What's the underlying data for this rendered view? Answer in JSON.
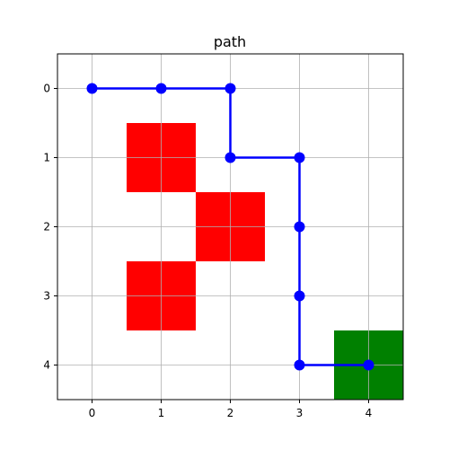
{
  "chart_data": {
    "type": "scatter",
    "title": "path",
    "xlabel": "",
    "ylabel": "",
    "xlim": [
      -0.5,
      4.5
    ],
    "ylim": [
      4.5,
      -0.5
    ],
    "y_axis_inverted": true,
    "grid": true,
    "x_ticks": [
      "0",
      "1",
      "2",
      "3",
      "4"
    ],
    "y_ticks": [
      "0",
      "1",
      "2",
      "3",
      "4"
    ],
    "obstacle_cells": [
      {
        "col": 1,
        "row": 1
      },
      {
        "col": 2,
        "row": 2
      },
      {
        "col": 1,
        "row": 3
      }
    ],
    "goal_cell": {
      "col": 4,
      "row": 4
    },
    "path": [
      {
        "x": 0,
        "y": 0
      },
      {
        "x": 1,
        "y": 0
      },
      {
        "x": 2,
        "y": 0
      },
      {
        "x": 2,
        "y": 1
      },
      {
        "x": 3,
        "y": 1
      },
      {
        "x": 3,
        "y": 2
      },
      {
        "x": 3,
        "y": 3
      },
      {
        "x": 3,
        "y": 4
      },
      {
        "x": 4,
        "y": 4
      }
    ],
    "colors": {
      "obstacle": "#ff0000",
      "goal": "#008000",
      "path": "#0000ff",
      "grid": "#b0b0b0",
      "axes": "#000000"
    }
  }
}
